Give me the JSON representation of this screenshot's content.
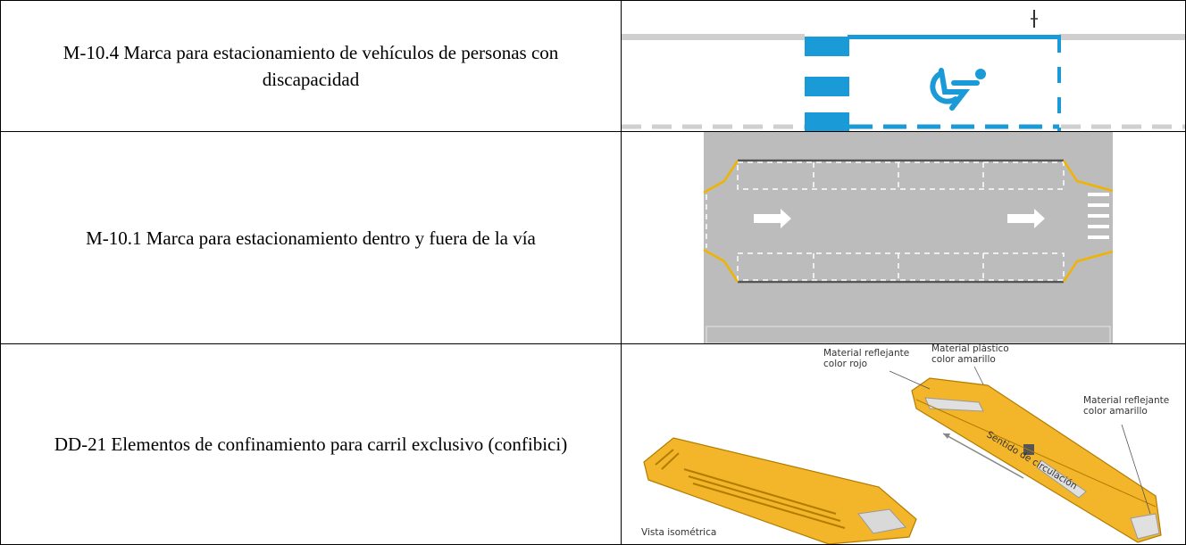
{
  "table": {
    "rows": [
      {
        "label": "M-10.4 Marca para estacionamiento de vehículos de personas con discapacidad"
      },
      {
        "label": "M-10.1 Marca para estacionamiento dentro y fuera de la vía"
      },
      {
        "label": "DD-21 Elementos de confinamiento para carril exclusivo (confibici)",
        "image_labels": [
          {
            "lines": [
              "Material reflejante",
              "color rojo"
            ]
          },
          {
            "lines": [
              "Material plástico",
              "color amarillo"
            ]
          },
          {
            "lines": [
              "Material reflejante",
              "color amarillo"
            ]
          },
          {
            "lines": [
              "Sentido de circulación"
            ]
          },
          {
            "lines": [
              "Vista isométrica"
            ]
          }
        ]
      }
    ]
  }
}
